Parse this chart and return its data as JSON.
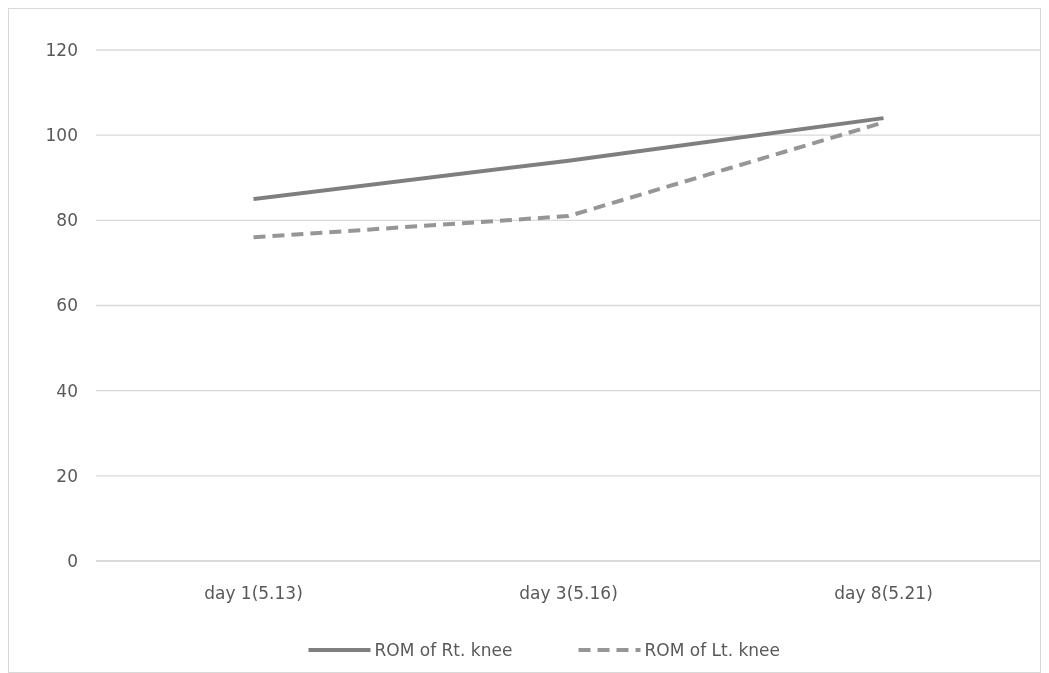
{
  "chart_data": {
    "type": "line",
    "categories": [
      "day 1(5.13)",
      "day 3(5.16)",
      "day 8(5.21)"
    ],
    "series": [
      {
        "name": "ROM of Rt. knee",
        "color": "#7f7f7f",
        "values": [
          85,
          94,
          104
        ],
        "line_style": "solid"
      },
      {
        "name": "ROM of Lt. knee",
        "color": "#969696",
        "values": [
          76,
          81,
          103
        ],
        "line_style": "dashed"
      }
    ],
    "ylim": [
      0,
      120
    ],
    "yticks": [
      0,
      20,
      40,
      60,
      80,
      100,
      120
    ],
    "grid": "y",
    "legend": "bottom",
    "marker": "none"
  }
}
